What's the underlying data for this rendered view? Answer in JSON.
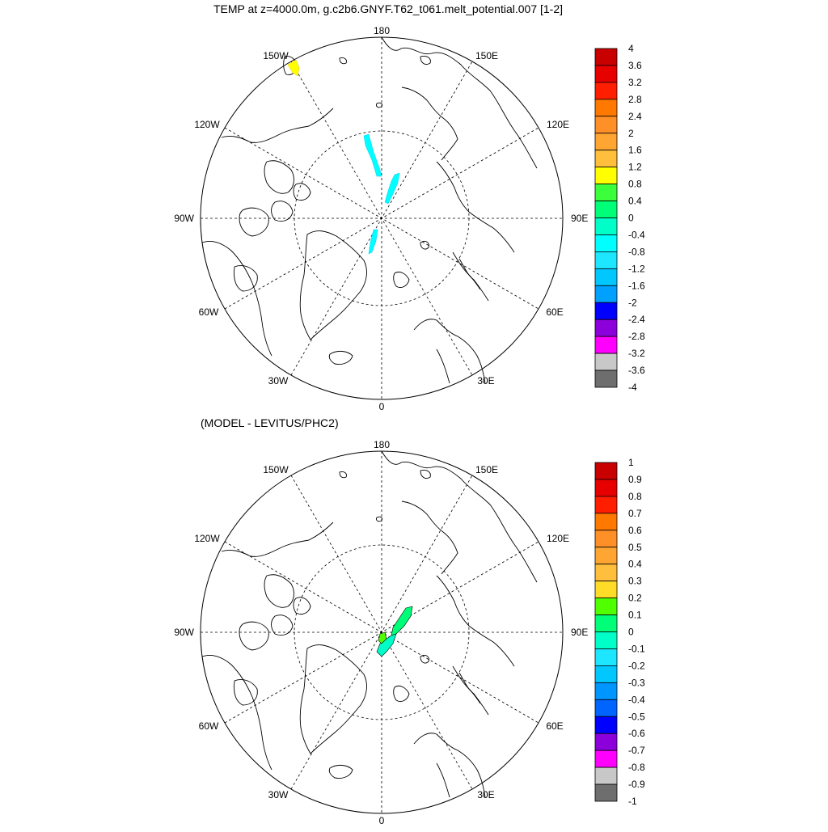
{
  "panels": [
    {
      "title": "TEMP at z=4000.0m, g.c2b6.GNYF.T62_t061.melt_potential.007 [1-2]",
      "lon_labels": [
        "180",
        "150E",
        "120E",
        "90E",
        "60E",
        "30E",
        "0",
        "30W",
        "60W",
        "90W",
        "120W",
        "150W"
      ],
      "colorbar": {
        "labels": [
          "4",
          "3.6",
          "3.2",
          "2.8",
          "2.4",
          "2",
          "1.6",
          "1.2",
          "0.8",
          "0.4",
          "0",
          "-0.4",
          "-0.8",
          "-1.2",
          "-1.6",
          "-2",
          "-2.4",
          "-2.8",
          "-3.2",
          "-3.6",
          "-4"
        ],
        "colors": [
          "#c80000",
          "#e60000",
          "#ff1e00",
          "#ff7800",
          "#ff9028",
          "#ffa532",
          "#ffbe3c",
          "#ffff00",
          "#3cff3c",
          "#00ff78",
          "#00ffc8",
          "#00ffff",
          "#1ee6ff",
          "#00c8ff",
          "#00a0ff",
          "#0000ff",
          "#8c00dc",
          "#ff00ff",
          "#c8c8c8",
          "#6e6e6e"
        ]
      }
    },
    {
      "title": "(MODEL - LEVITUS/PHC2)",
      "lon_labels": [
        "180",
        "150E",
        "120E",
        "90E",
        "60E",
        "30E",
        "0",
        "30W",
        "60W",
        "90W",
        "120W",
        "150W"
      ],
      "colorbar": {
        "labels": [
          "1",
          "0.9",
          "0.8",
          "0.7",
          "0.6",
          "0.5",
          "0.4",
          "0.3",
          "0.2",
          "0.1",
          "0",
          "-0.1",
          "-0.2",
          "-0.3",
          "-0.4",
          "-0.5",
          "-0.6",
          "-0.7",
          "-0.8",
          "-0.9",
          "-1"
        ],
        "colors": [
          "#c80000",
          "#e60000",
          "#ff1e00",
          "#ff7800",
          "#ff9028",
          "#ffa532",
          "#ffbe3c",
          "#ffdc28",
          "#50ff00",
          "#00ff78",
          "#00ffc8",
          "#1ee6ff",
          "#00c8ff",
          "#0096ff",
          "#0064ff",
          "#0000ff",
          "#8c00dc",
          "#ff00ff",
          "#c8c8c8",
          "#6e6e6e"
        ]
      }
    }
  ]
}
